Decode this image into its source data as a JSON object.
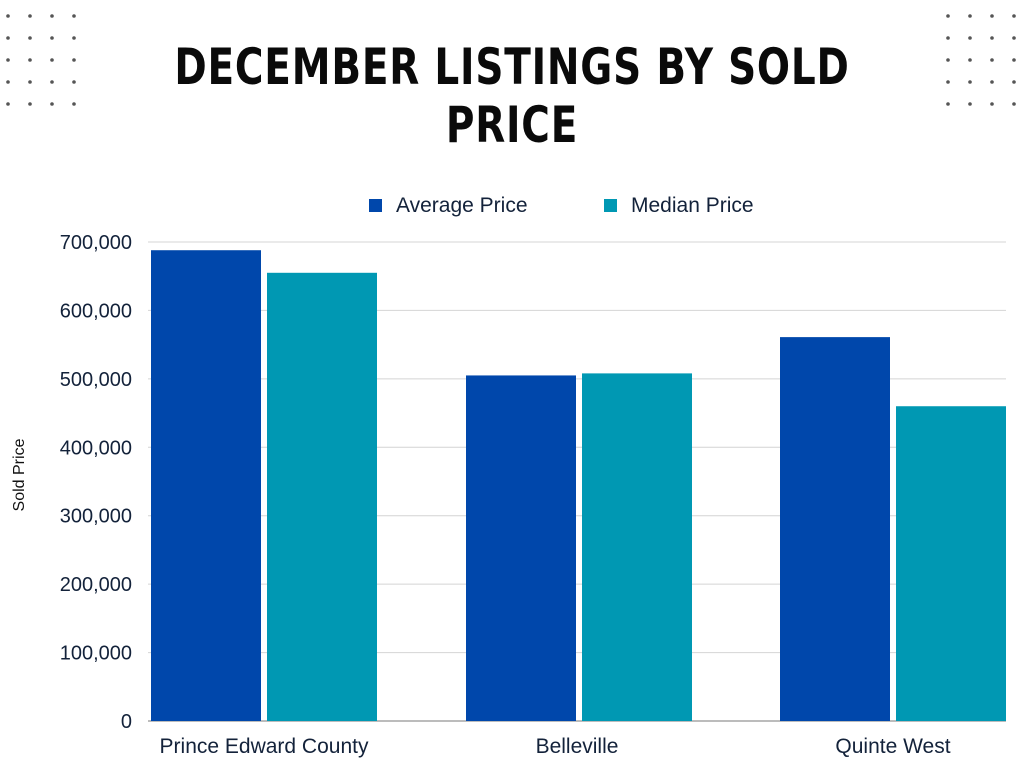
{
  "title": "DECEMBER LISTINGS BY SOLD PRICE",
  "colors": {
    "average": "#0047AB",
    "median": "#0098B3",
    "grid": "#d4d4d4",
    "axis": "#7a7a7a",
    "text": "#13223a",
    "dots": "#555555"
  },
  "chart_data": {
    "type": "bar",
    "title": "DECEMBER LISTINGS BY SOLD PRICE",
    "xlabel": "",
    "ylabel": "Sold Price",
    "categories": [
      "Prince Edward County",
      "Belleville",
      "Quinte West"
    ],
    "series": [
      {
        "name": "Average Price",
        "values": [
          688000,
          505000,
          561000
        ]
      },
      {
        "name": "Median Price",
        "values": [
          655000,
          508000,
          460000
        ]
      }
    ],
    "ylim": [
      0,
      700000
    ],
    "yticks": [
      "0",
      "100,000",
      "200,000",
      "300,000",
      "400,000",
      "500,000",
      "600,000",
      "700,000"
    ],
    "grid": true,
    "legend": "top-center"
  }
}
